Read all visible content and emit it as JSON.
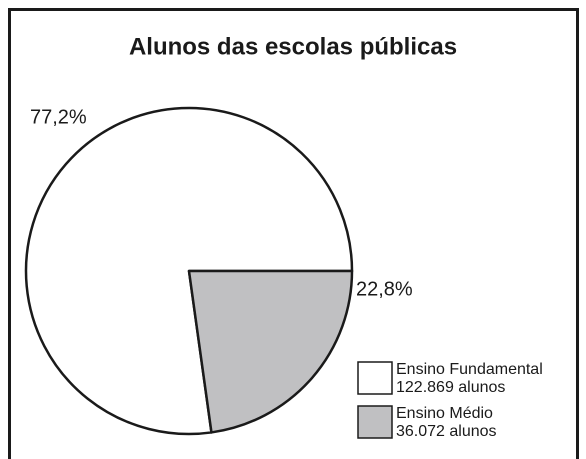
{
  "chart_data": {
    "type": "pie",
    "title": "Alunos das escolas públicas",
    "categories": [
      "Ensino Fundamental",
      "Ensino Médio"
    ],
    "values": [
      77.2,
      22.8
    ],
    "value_labels": [
      "77,2%",
      "22,8%"
    ],
    "legend_details": [
      "122.869 alunos",
      "36.072 alunos"
    ],
    "colors": [
      "#ffffff",
      "#c0c0c2"
    ]
  }
}
